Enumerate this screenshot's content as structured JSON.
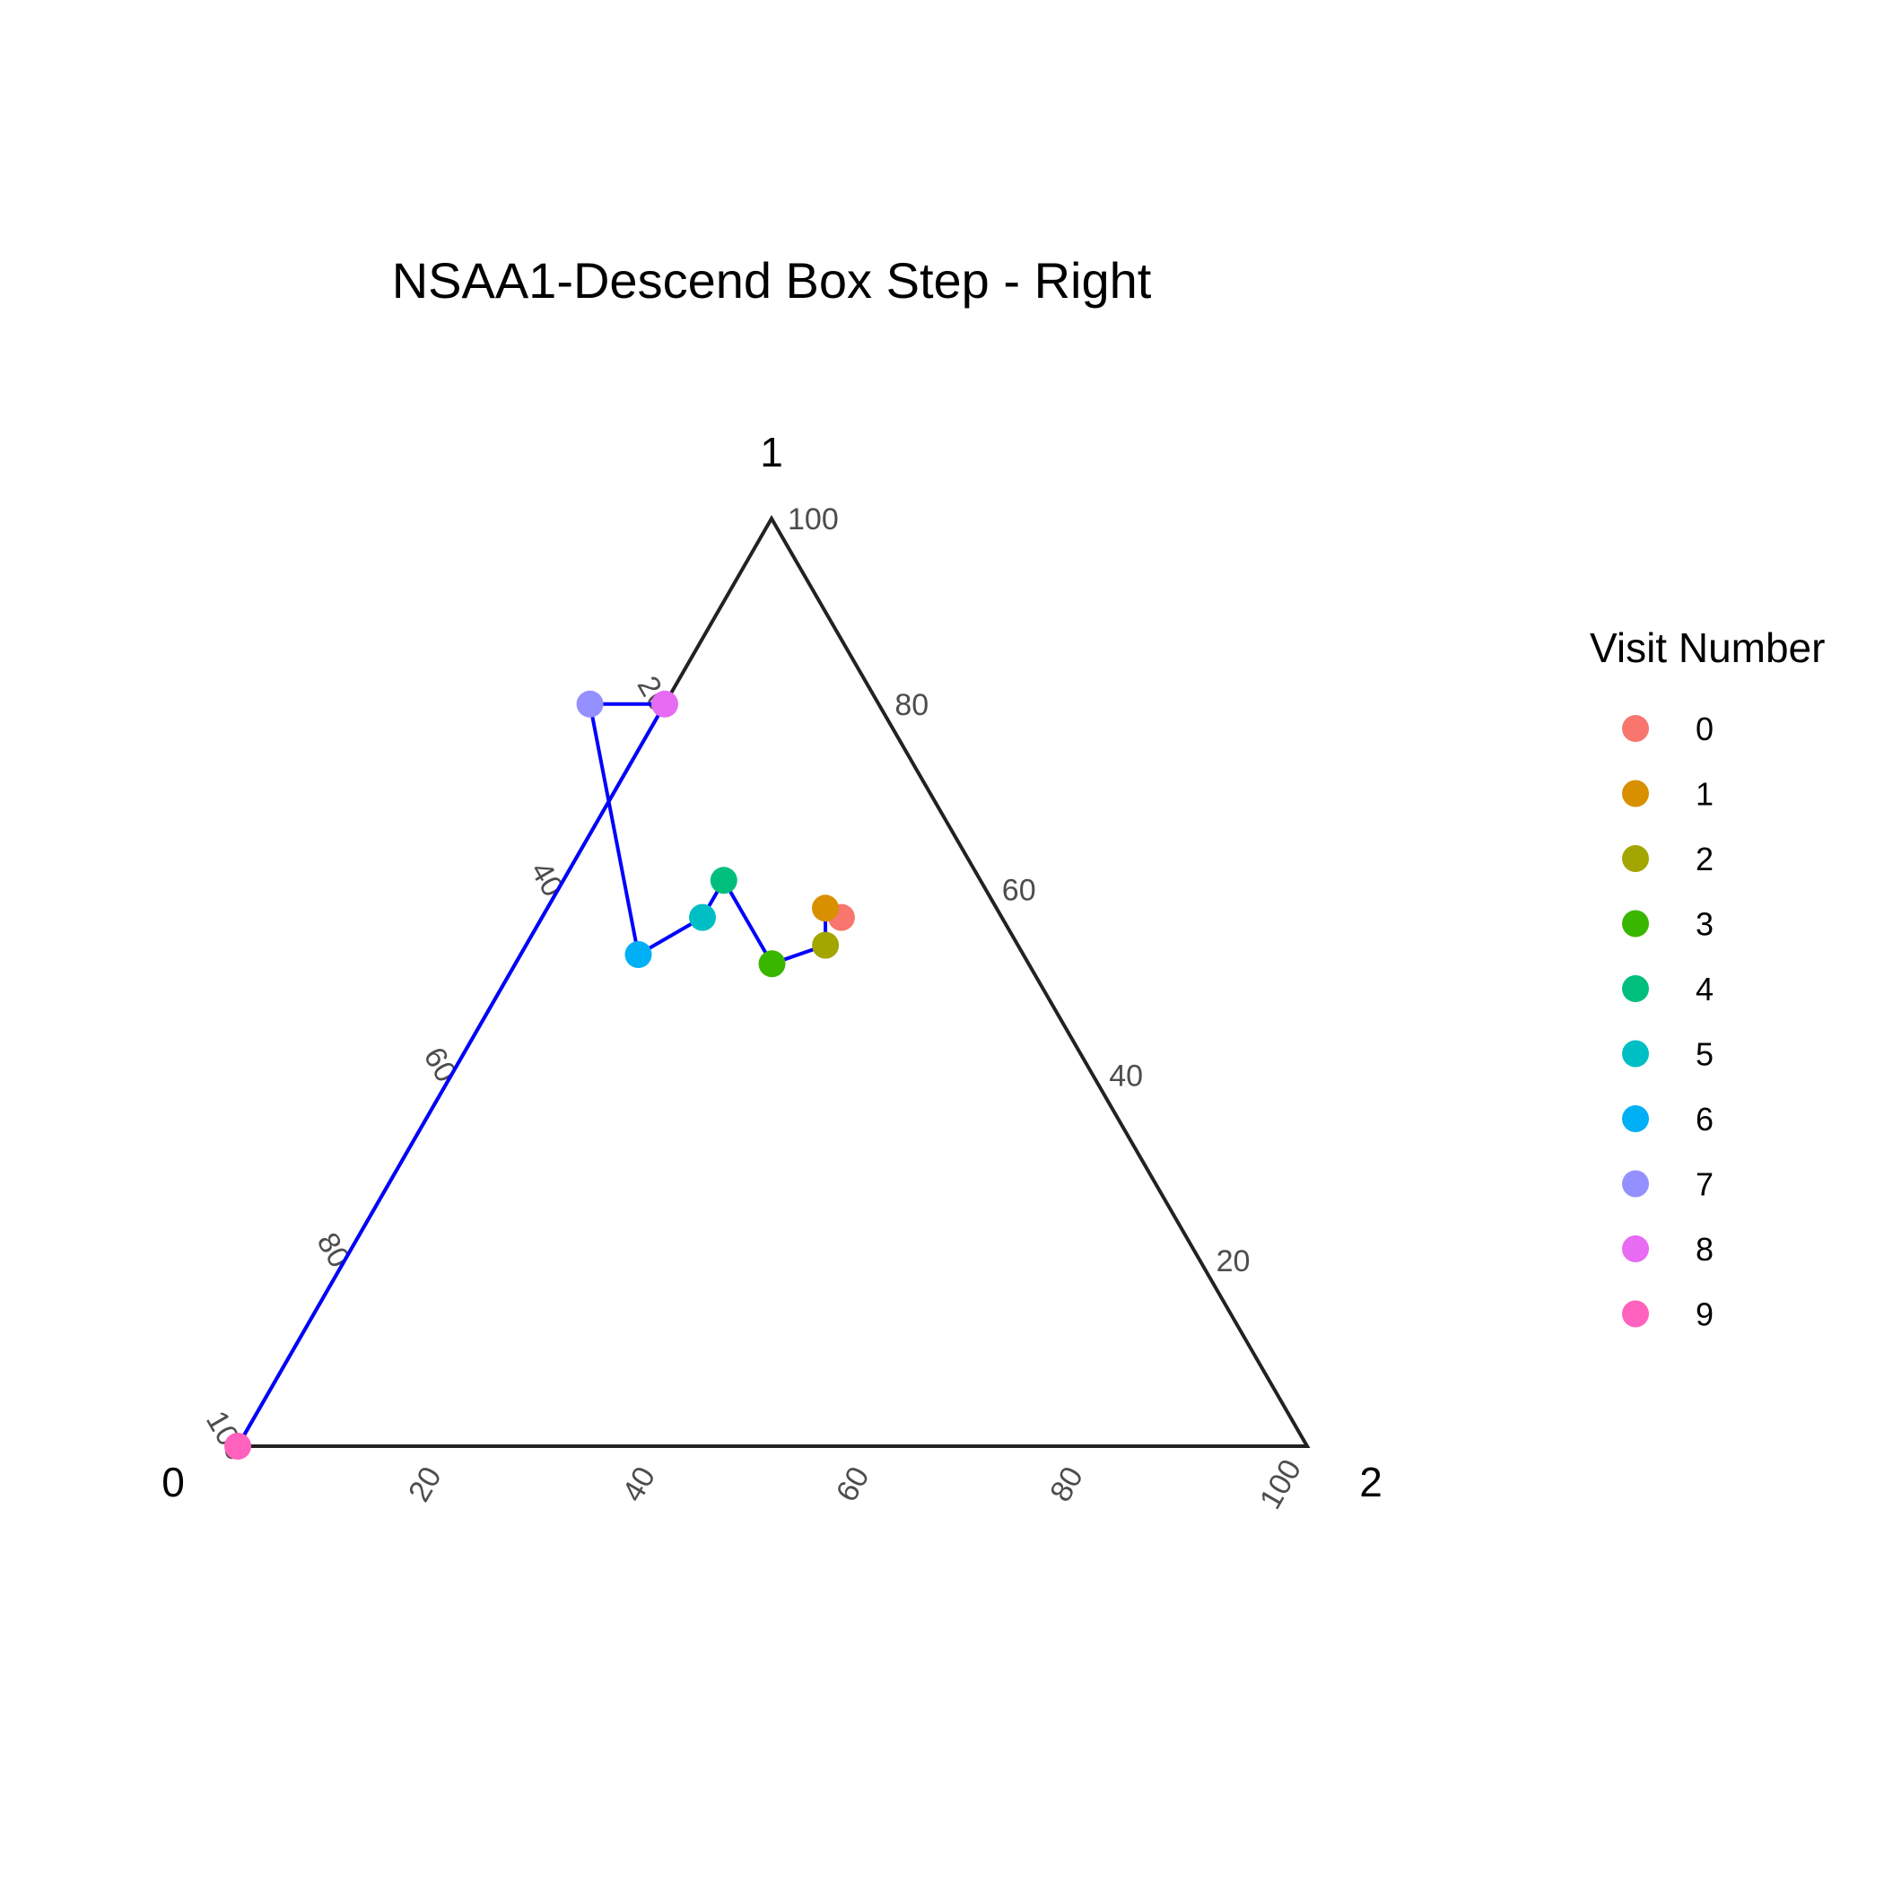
{
  "chart_data": {
    "type": "ternary-scatter",
    "title": "NSAA1-Descend Box Step - Right",
    "axes": {
      "a": {
        "label": "0",
        "ticks": [
          "20",
          "40",
          "60",
          "80",
          "100"
        ]
      },
      "b": {
        "label": "1",
        "ticks": [
          "20",
          "40",
          "60",
          "80",
          "100"
        ]
      },
      "c": {
        "label": "2",
        "ticks": [
          "20",
          "40",
          "60",
          "80",
          "100"
        ]
      }
    },
    "legend": {
      "title": "Visit Number",
      "position": "right",
      "entries": [
        {
          "label": "0",
          "color": "#F8766D"
        },
        {
          "label": "1",
          "color": "#D89000"
        },
        {
          "label": "2",
          "color": "#A3A500"
        },
        {
          "label": "3",
          "color": "#39B600"
        },
        {
          "label": "4",
          "color": "#00BF7D"
        },
        {
          "label": "5",
          "color": "#00BFC4"
        },
        {
          "label": "6",
          "color": "#00B0F6"
        },
        {
          "label": "7",
          "color": "#9590FF"
        },
        {
          "label": "8",
          "color": "#E76BF3"
        },
        {
          "label": "9",
          "color": "#FF62BC"
        }
      ]
    },
    "points": [
      {
        "visit": "0",
        "a": 15,
        "b": 57,
        "c": 28
      },
      {
        "visit": "1",
        "a": 16,
        "b": 58,
        "c": 26
      },
      {
        "visit": "2",
        "a": 18,
        "b": 54,
        "c": 28
      },
      {
        "visit": "3",
        "a": 24,
        "b": 52,
        "c": 24
      },
      {
        "visit": "4",
        "a": 24,
        "b": 61,
        "c": 15
      },
      {
        "visit": "5",
        "a": 28,
        "b": 57,
        "c": 15
      },
      {
        "visit": "6",
        "a": 36,
        "b": 53,
        "c": 11
      },
      {
        "visit": "7",
        "a": 27,
        "b": 80,
        "c": -7
      },
      {
        "visit": "8",
        "a": 20,
        "b": 80,
        "c": 0
      },
      {
        "visit": "9",
        "a": 100,
        "b": 0,
        "c": 0
      }
    ],
    "path_color": "#0000FF",
    "frame_color": "#222222"
  }
}
